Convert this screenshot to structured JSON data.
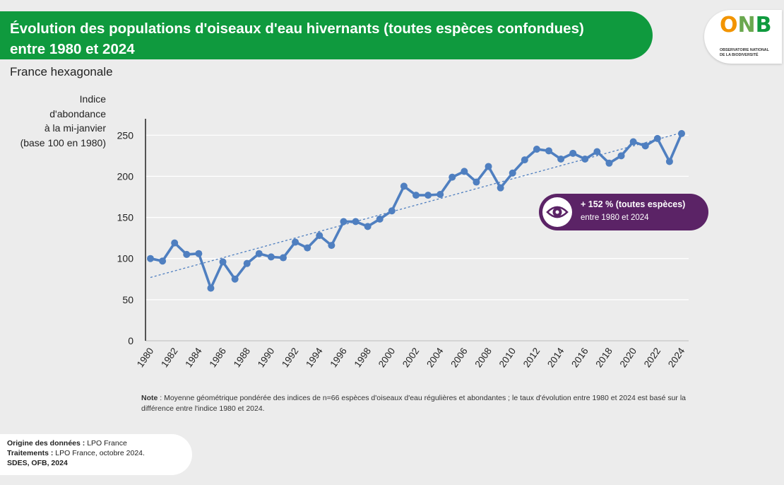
{
  "header": {
    "title_line1": "Évolution des populations d'oiseaux d'eau hivernants (toutes espèces confondues)",
    "title_line2": "entre 1980 et 2024",
    "subtitle": "France hexagonale"
  },
  "logo": {
    "mark_o": "O",
    "mark_n": "N",
    "mark_b": "B",
    "sub_line1": "Observatoire national",
    "sub_line2": "de la biodiversité"
  },
  "callout": {
    "icon": "eye-icon",
    "line1": "+ 152 % (toutes espèces)",
    "line2": "entre 1980 et 2024"
  },
  "note": {
    "label": "Note",
    "text": " : Moyenne géométrique pondérée des indices de n=66 espèces d'oiseaux d'eau régulières et abondantes ; le taux d'évolution entre 1980 et 2024 est basé sur la différence entre l'indice 1980 et 2024."
  },
  "source": {
    "origin_label": "Origine des données :",
    "origin_value": " LPO France",
    "treatment_label": "Traitements :",
    "treatment_value": " LPO France, octobre 2024.",
    "credit": "SDES, OFB, 2024"
  },
  "colors": {
    "banner": "#0f9a3e",
    "line": "#4f7fc0",
    "trend": "#4f7fc0",
    "callout": "#5b2366"
  },
  "chart_data": {
    "type": "line",
    "title": "Évolution des populations d'oiseaux d'eau hivernants (toutes espèces confondues) entre 1980 et 2024",
    "subtitle": "France hexagonale",
    "ylabel_lines": [
      "Indice",
      "d'abondance",
      "à la mi-janvier",
      "(base 100 en 1980)"
    ],
    "xlabel": "",
    "ylim": [
      0,
      270
    ],
    "yticks": [
      0,
      50,
      100,
      150,
      200,
      250
    ],
    "xticks": [
      1980,
      1982,
      1984,
      1986,
      1988,
      1990,
      1992,
      1994,
      1996,
      1998,
      2000,
      2002,
      2004,
      2006,
      2008,
      2010,
      2012,
      2014,
      2016,
      2018,
      2020,
      2022,
      2024
    ],
    "grid": "horizontal",
    "series": [
      {
        "x": [
          1980,
          1981,
          1982,
          1983,
          1984,
          1985,
          1986,
          1987,
          1988,
          1989,
          1990,
          1991,
          1992,
          1993,
          1994,
          1995,
          1996,
          1997,
          1998,
          1999,
          2000,
          2001,
          2002,
          2003,
          2004,
          2005,
          2006,
          2007,
          2008,
          2009,
          2010,
          2011,
          2012,
          2013,
          2014,
          2015,
          2016,
          2017,
          2018,
          2019,
          2020,
          2021,
          2022,
          2023,
          2024
        ],
        "values": [
          100,
          97,
          119,
          105,
          106,
          64,
          96,
          75,
          94,
          106,
          102,
          101,
          120,
          113,
          128,
          116,
          145,
          145,
          139,
          148,
          158,
          188,
          177,
          177,
          178,
          199,
          206,
          193,
          212,
          186,
          204,
          220,
          233,
          231,
          221,
          228,
          221,
          230,
          216,
          225,
          242,
          237,
          246,
          218,
          252
        ]
      }
    ],
    "trend_line": {
      "style": "dashed",
      "x": [
        1980,
        2024
      ],
      "values": [
        77,
        253
      ]
    }
  }
}
